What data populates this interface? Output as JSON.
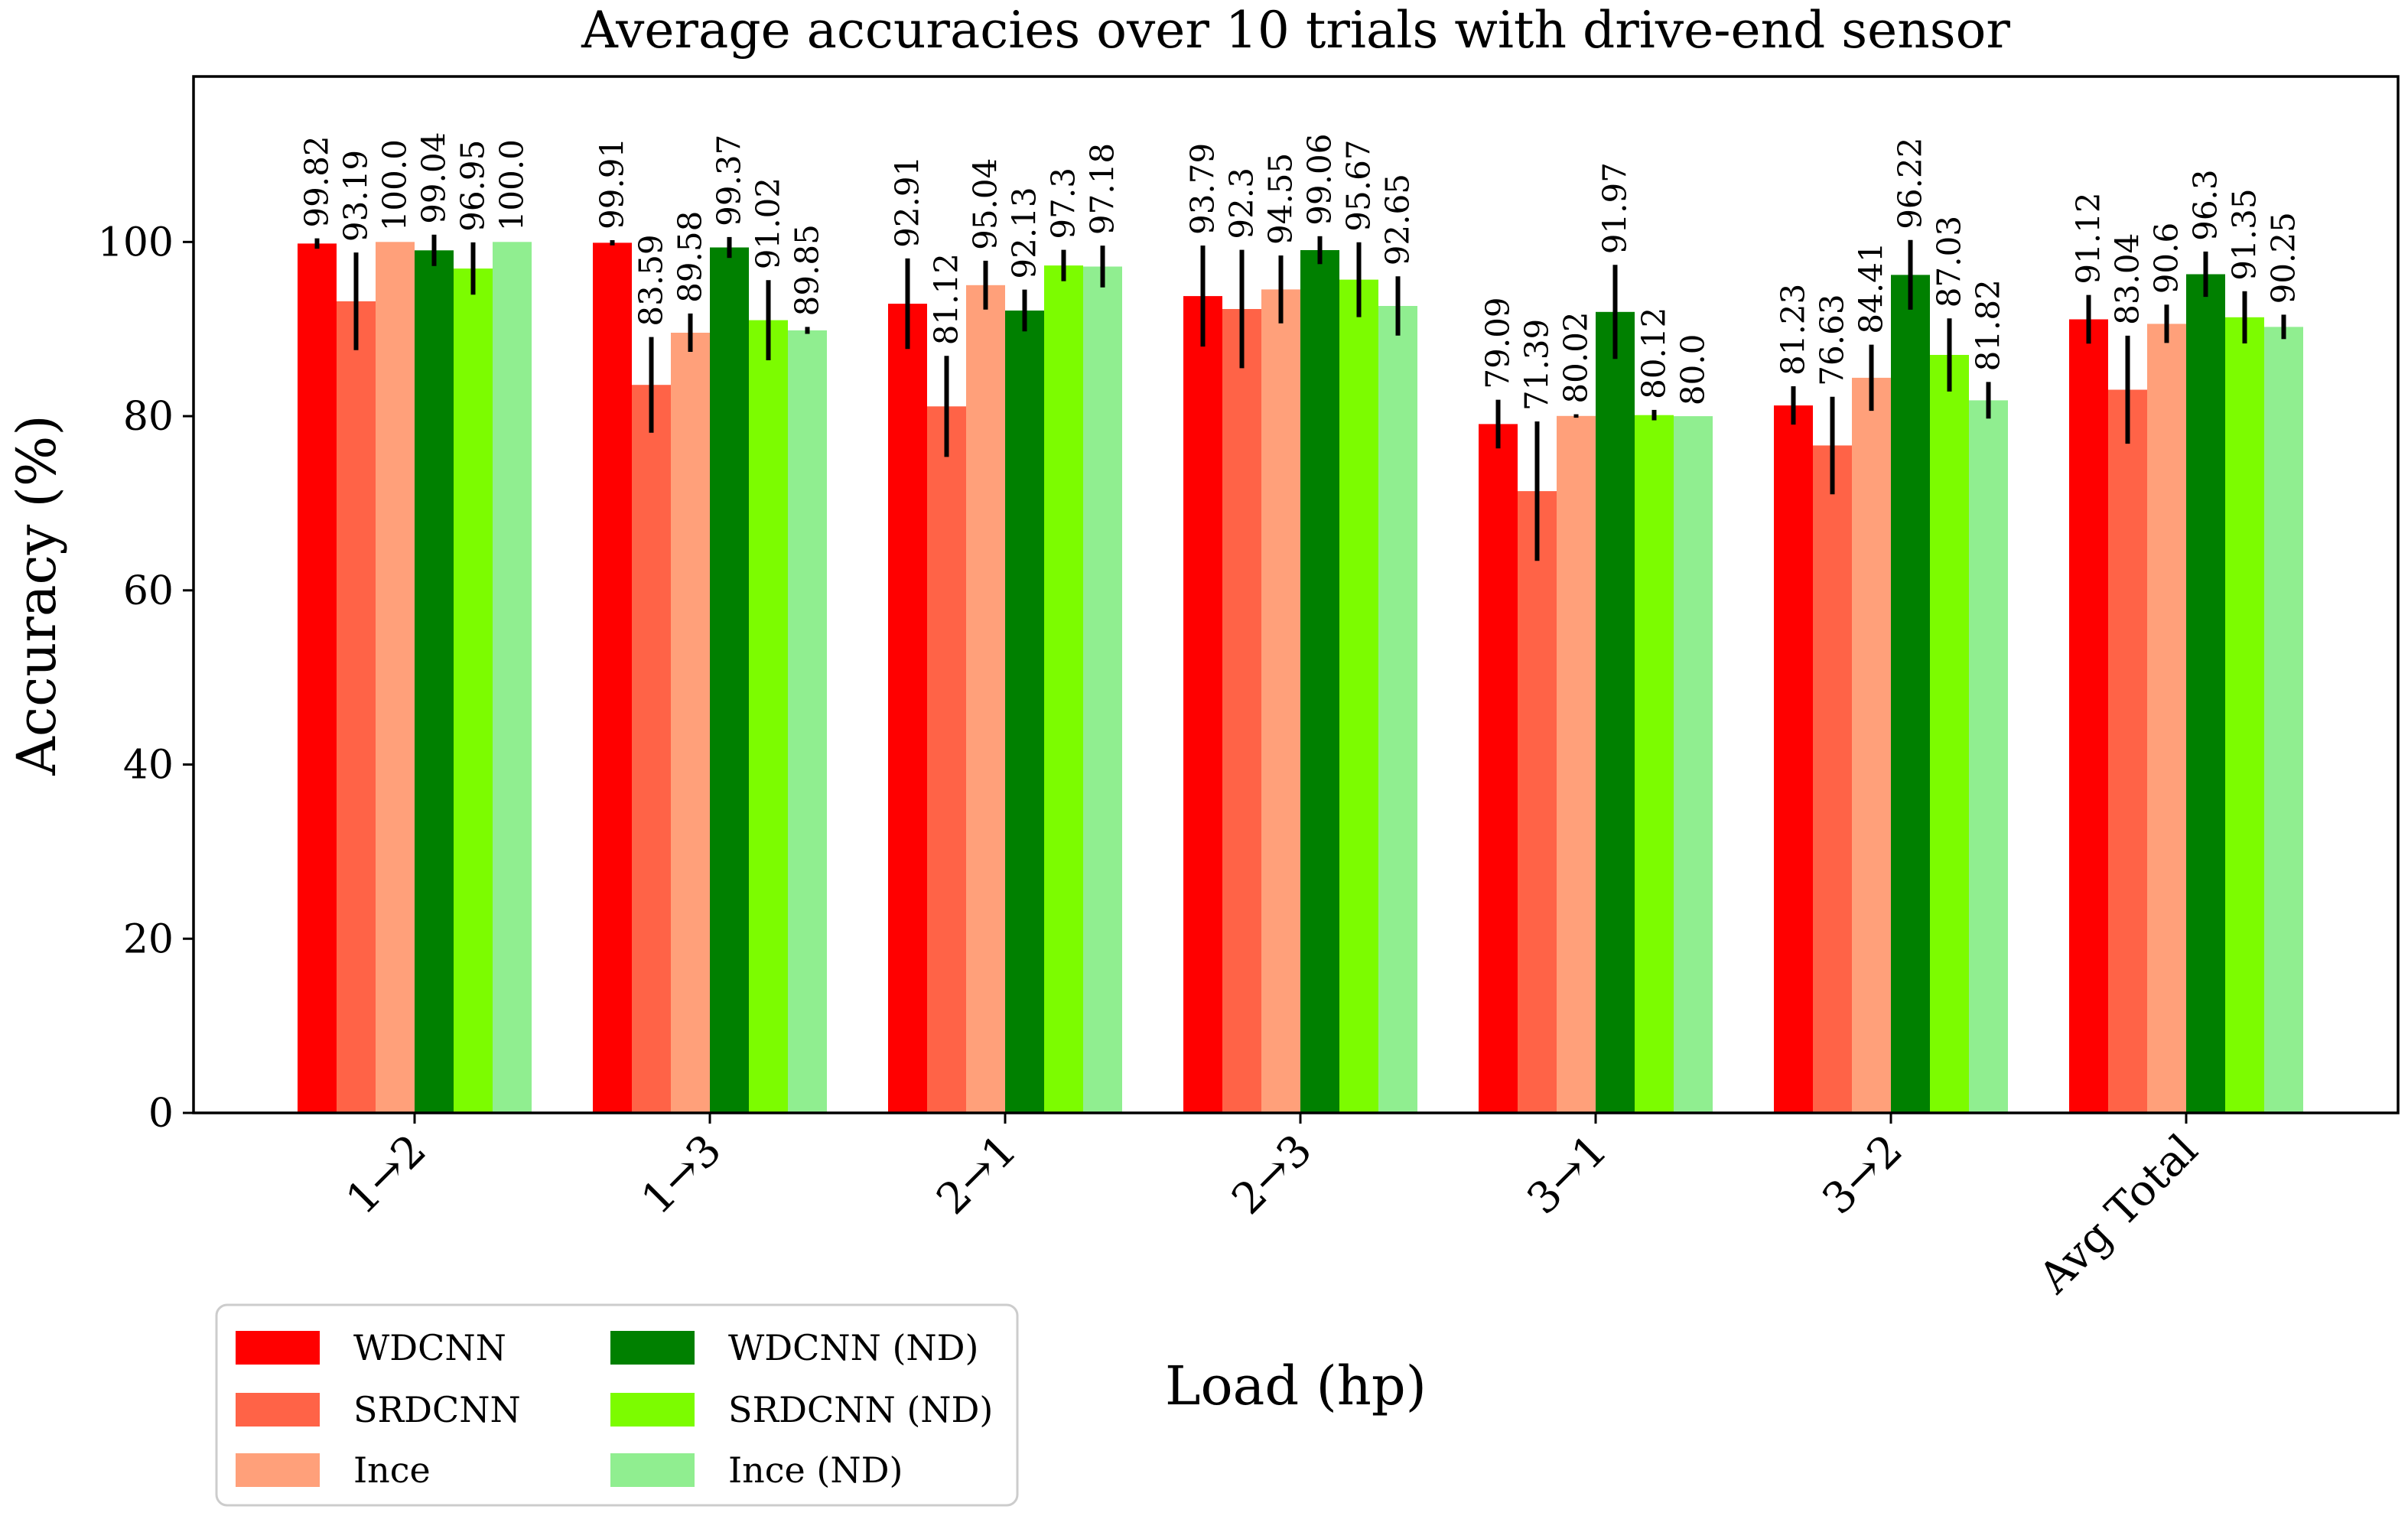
{
  "chart_data": {
    "type": "bar",
    "title": "Average accuracies over 10 trials with drive-end sensor",
    "xlabel": "Load (hp)",
    "ylabel": "Accuracy (%)",
    "ylim": [
      0,
      119
    ],
    "yticks": [
      0,
      20,
      40,
      60,
      80,
      100
    ],
    "ytick_labels": [
      "0",
      "20",
      "40",
      "60",
      "80",
      "100"
    ],
    "grid": false,
    "legend_position": "lower-left, below axes",
    "categories": [
      "1→2",
      "1→3",
      "2→1",
      "2→3",
      "3→1",
      "3→2",
      "Avg Total"
    ],
    "series": [
      {
        "name": "WDCNN",
        "color": "#ff0000",
        "values": [
          99.82,
          99.91,
          92.91,
          93.79,
          79.09,
          81.23,
          91.12
        ],
        "labels": [
          "99.82",
          "99.91",
          "92.91",
          "93.79",
          "79.09",
          "81.23",
          "91.12"
        ],
        "errors": [
          0.6,
          0.3,
          5.2,
          5.8,
          2.8,
          2.2,
          2.8
        ]
      },
      {
        "name": "SRDCNN",
        "color": "#ff6347",
        "values": [
          93.19,
          83.59,
          81.12,
          92.3,
          71.39,
          76.63,
          83.04
        ],
        "labels": [
          "93.19",
          "83.59",
          "81.12",
          "92.3",
          "71.39",
          "76.63",
          "83.04"
        ],
        "errors": [
          5.6,
          5.5,
          5.8,
          6.8,
          8.0,
          5.6,
          6.2
        ]
      },
      {
        "name": "Ince",
        "color": "#ffa07a",
        "values": [
          100.0,
          89.58,
          95.04,
          94.55,
          80.02,
          84.41,
          90.6
        ],
        "labels": [
          "100.0",
          "89.58",
          "95.04",
          "94.55",
          "80.02",
          "84.41",
          "90.6"
        ],
        "errors": [
          0.0,
          2.2,
          2.8,
          3.9,
          0.2,
          3.8,
          2.2
        ]
      },
      {
        "name": "WDCNN (ND)",
        "color": "#008000",
        "values": [
          99.04,
          99.37,
          92.13,
          99.06,
          91.97,
          96.22,
          96.3
        ],
        "labels": [
          "99.04",
          "99.37",
          "92.13",
          "99.06",
          "91.97",
          "96.22",
          "96.3"
        ],
        "errors": [
          1.8,
          1.2,
          2.4,
          1.6,
          5.4,
          4.0,
          2.6
        ]
      },
      {
        "name": "SRDCNN (ND)",
        "color": "#7cfc00",
        "values": [
          96.95,
          91.02,
          97.3,
          95.67,
          80.12,
          87.03,
          91.35
        ],
        "labels": [
          "96.95",
          "91.02",
          "97.3",
          "95.67",
          "80.12",
          "87.03",
          "91.35"
        ],
        "errors": [
          3.0,
          4.6,
          1.8,
          4.3,
          0.6,
          4.2,
          3.0
        ]
      },
      {
        "name": "Ince (ND)",
        "color": "#90ee90",
        "values": [
          100.0,
          89.85,
          97.18,
          92.65,
          80.0,
          81.82,
          90.25
        ],
        "labels": [
          "100.0",
          "89.85",
          "97.18",
          "92.65",
          "80.0",
          "81.82",
          "90.25"
        ],
        "errors": [
          0.0,
          0.4,
          2.4,
          3.4,
          0.0,
          2.1,
          1.4
        ]
      }
    ]
  }
}
